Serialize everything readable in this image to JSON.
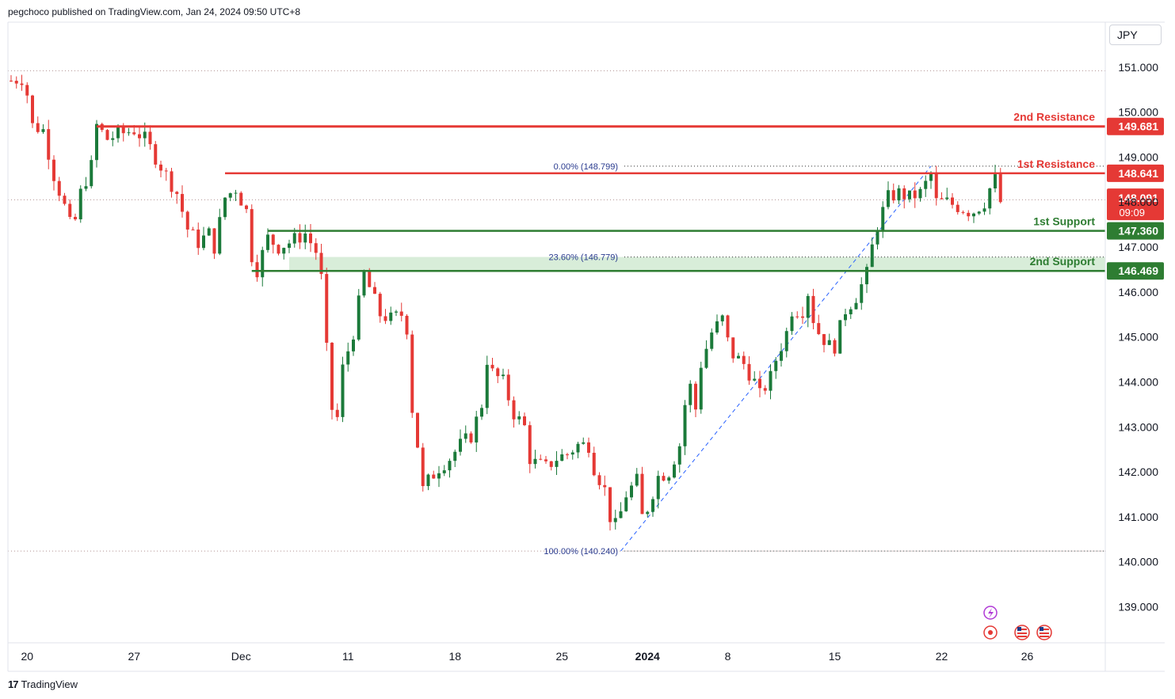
{
  "header": {
    "published": "pegchoco published on TradingView.com, Jan 24, 2024 09:50 UTC+8",
    "currency": "JPY"
  },
  "brand": {
    "logo_icon": "tradingview-logo-icon",
    "name": "TradingView"
  },
  "colors": {
    "up": "#26a69a",
    "up_fill": "#1b7a3a",
    "down": "#e53935",
    "resistance": "#e53935",
    "support": "#2e7d32",
    "fib": "#2962ff",
    "zone": "#c8e6c9",
    "grid_dot": "#c8c8c8"
  },
  "chart_data": {
    "type": "candlestick",
    "title": "",
    "ylim": [
      138.2,
      152.0
    ],
    "y_ticks": [
      "139.000",
      "140.000",
      "141.000",
      "142.000",
      "143.000",
      "144.000",
      "145.000",
      "146.000",
      "147.000",
      "148.000",
      "149.000",
      "150.000",
      "151.000"
    ],
    "x_labels": [
      {
        "label": "20",
        "index": 3
      },
      {
        "label": "27",
        "index": 23
      },
      {
        "label": "Dec",
        "index": 43
      },
      {
        "label": "11",
        "index": 63
      },
      {
        "label": "18",
        "index": 83
      },
      {
        "label": "25",
        "index": 103
      },
      {
        "label": "2024",
        "index": 119,
        "bold": true
      },
      {
        "label": "8",
        "index": 134
      },
      {
        "label": "15",
        "index": 154
      },
      {
        "label": "22",
        "index": 174
      },
      {
        "label": "26",
        "index": 190
      }
    ],
    "x_count": 205,
    "levels": [
      {
        "name": "2nd Resistance",
        "value": 149.681,
        "value_label": "149.681",
        "kind": "resistance",
        "start_index": 16,
        "thick": true
      },
      {
        "name": "1st Resistance",
        "value": 148.641,
        "value_label": "148.641",
        "kind": "resistance",
        "start_index": 40,
        "thick": false
      },
      {
        "name": "1st Support",
        "value": 147.36,
        "value_label": "147.360",
        "kind": "support",
        "start_index": 48,
        "thick": false
      },
      {
        "name": "2nd Support",
        "value": 146.469,
        "value_label": "146.469",
        "kind": "support",
        "start_index": 45,
        "thick": false
      }
    ],
    "support_zone": {
      "from": 146.469,
      "to": 146.779,
      "start_index": 52
    },
    "current_price": {
      "value": 148.091,
      "value_label": "148.091",
      "countdown": "09:09"
    },
    "fibonacci": [
      {
        "label": "0.00% (148.799)",
        "value": 148.799
      },
      {
        "label": "23.60% (146.779)",
        "value": 146.779
      },
      {
        "label": "100.00% (140.240)",
        "value": 140.24
      }
    ],
    "fib_anchor": {
      "start_index": 114,
      "start_value": 140.24,
      "end_index": 172,
      "end_value": 148.799
    },
    "dotted_lines": [
      150.92,
      148.05,
      140.24
    ],
    "waypoints": [
      [
        0,
        150.7
      ],
      [
        2,
        150.75
      ],
      [
        3,
        150.4
      ],
      [
        4,
        149.7
      ],
      [
        6,
        149.6
      ],
      [
        8,
        148.6
      ],
      [
        10,
        147.9
      ],
      [
        11,
        147.5
      ],
      [
        12,
        147.6
      ],
      [
        13,
        148.2
      ],
      [
        15,
        148.8
      ],
      [
        16,
        149.7
      ],
      [
        18,
        149.4
      ],
      [
        20,
        149.5
      ],
      [
        23,
        149.6
      ],
      [
        25,
        149.4
      ],
      [
        27,
        149.0
      ],
      [
        29,
        148.6
      ],
      [
        31,
        148.2
      ],
      [
        33,
        147.4
      ],
      [
        35,
        147.1
      ],
      [
        37,
        147.3
      ],
      [
        38,
        147.0
      ],
      [
        40,
        148.1
      ],
      [
        42,
        148.3
      ],
      [
        44,
        147.8
      ],
      [
        45,
        146.8
      ],
      [
        46,
        146.5
      ],
      [
        48,
        147.2
      ],
      [
        50,
        147.0
      ],
      [
        52,
        147.1
      ],
      [
        55,
        147.3
      ],
      [
        57,
        146.9
      ],
      [
        58,
        146.3
      ],
      [
        59,
        144.7
      ],
      [
        60,
        143.4
      ],
      [
        61,
        143.2
      ],
      [
        62,
        144.3
      ],
      [
        64,
        145.1
      ],
      [
        66,
        146.4
      ],
      [
        67,
        146.1
      ],
      [
        69,
        145.5
      ],
      [
        71,
        145.4
      ],
      [
        73,
        145.5
      ],
      [
        74,
        145.2
      ],
      [
        75,
        143.4
      ],
      [
        76,
        142.6
      ],
      [
        77,
        141.6
      ],
      [
        78,
        141.8
      ],
      [
        80,
        142.1
      ],
      [
        82,
        142.3
      ],
      [
        84,
        142.6
      ],
      [
        86,
        142.8
      ],
      [
        88,
        143.5
      ],
      [
        89,
        144.5
      ],
      [
        90,
        144.2
      ],
      [
        92,
        144.0
      ],
      [
        94,
        143.3
      ],
      [
        96,
        143.0
      ],
      [
        97,
        142.3
      ],
      [
        98,
        142.2
      ],
      [
        100,
        142.1
      ],
      [
        102,
        142.3
      ],
      [
        104,
        142.4
      ],
      [
        106,
        142.6
      ],
      [
        108,
        142.6
      ],
      [
        109,
        142.1
      ],
      [
        111,
        141.6
      ],
      [
        112,
        141.0
      ],
      [
        113,
        140.8
      ],
      [
        114,
        141.1
      ],
      [
        115,
        141.5
      ],
      [
        117,
        141.8
      ],
      [
        118,
        141.0
      ],
      [
        119,
        141.2
      ],
      [
        121,
        141.9
      ],
      [
        123,
        142.0
      ],
      [
        125,
        142.6
      ],
      [
        126,
        143.5
      ],
      [
        127,
        143.9
      ],
      [
        128,
        143.4
      ],
      [
        129,
        144.4
      ],
      [
        131,
        145.1
      ],
      [
        133,
        145.4
      ],
      [
        134,
        144.9
      ],
      [
        135,
        144.6
      ],
      [
        137,
        144.4
      ],
      [
        139,
        144.0
      ],
      [
        140,
        143.7
      ],
      [
        142,
        144.1
      ],
      [
        143,
        144.5
      ],
      [
        145,
        145.1
      ],
      [
        146,
        145.6
      ],
      [
        148,
        145.6
      ],
      [
        149,
        146.0
      ],
      [
        150,
        145.4
      ],
      [
        151,
        145.1
      ],
      [
        153,
        144.8
      ],
      [
        154,
        144.8
      ],
      [
        156,
        145.6
      ],
      [
        158,
        145.9
      ],
      [
        160,
        146.4
      ],
      [
        161,
        147.0
      ],
      [
        162,
        147.5
      ],
      [
        163,
        147.8
      ],
      [
        164,
        148.1
      ],
      [
        166,
        148.2
      ],
      [
        168,
        148.1
      ],
      [
        170,
        148.2
      ],
      [
        172,
        148.6
      ],
      [
        173,
        148.0
      ],
      [
        175,
        148.0
      ],
      [
        177,
        147.9
      ],
      [
        179,
        147.8
      ],
      [
        180,
        147.8
      ],
      [
        181,
        147.9
      ],
      [
        182,
        148.0
      ],
      [
        183,
        148.3
      ],
      [
        184,
        148.5
      ],
      [
        185,
        148.0
      ]
    ]
  }
}
